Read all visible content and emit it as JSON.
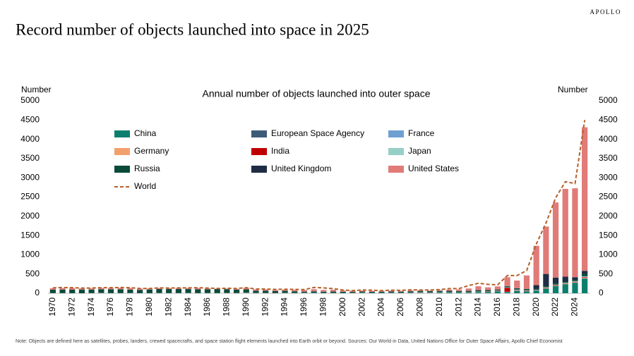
{
  "brand": "APOLLO",
  "title": "Record number of objects launched into space in 2025",
  "note": "Note: Objects are defined here as satellites, probes, landers, crewed spacecrafts, and space station flight elements launched into Earth orbit or beyond. Sources: Our World in Data, United Nations Office for Outer Space Affairs, Apollo Chief Economist",
  "chart_data": {
    "type": "bar",
    "stacked": true,
    "title": "Annual number of objects launched into outer space",
    "y_label": "Number",
    "y2_label": "Number",
    "legend": "upper left",
    "categories": [
      "1970",
      null,
      "1972",
      null,
      "1974",
      null,
      "1976",
      null,
      "1978",
      null,
      "1980",
      null,
      "1982",
      null,
      "1984",
      null,
      "1986",
      null,
      "1988",
      null,
      "1990",
      null,
      "1992",
      null,
      "1994",
      null,
      "1996",
      null,
      "1998",
      null,
      "2000",
      null,
      "2002",
      null,
      "2004",
      null,
      "2006",
      null,
      "2008",
      null,
      "2010",
      null,
      "2012",
      null,
      "2014",
      null,
      "2016",
      null,
      "2018",
      null,
      "2020",
      null,
      "2022",
      null,
      "2024",
      null
    ],
    "ylim": [
      0,
      5000
    ],
    "yticks": [
      0,
      500,
      1000,
      1500,
      2000,
      2500,
      3000,
      3500,
      4000,
      4500,
      5000
    ],
    "y2lim": [
      0,
      5000
    ],
    "y2ticks": [
      0,
      500,
      1000,
      1500,
      2000,
      2500,
      3000,
      3500,
      4000,
      4500,
      5000
    ],
    "series": [
      {
        "name": "China",
        "color": "#0b7f6e",
        "values": [
          1,
          1,
          0,
          0,
          1,
          3,
          2,
          0,
          1,
          0,
          0,
          3,
          1,
          2,
          3,
          1,
          2,
          2,
          4,
          1,
          4,
          3,
          5,
          2,
          5,
          2,
          4,
          8,
          6,
          4,
          5,
          3,
          5,
          7,
          10,
          5,
          6,
          10,
          11,
          7,
          16,
          19,
          20,
          18,
          26,
          30,
          50,
          30,
          60,
          50,
          70,
          120,
          190,
          230,
          270,
          380
        ]
      },
      {
        "name": "European Space Agency",
        "color": "#3d5a78",
        "values": [
          0,
          0,
          0,
          0,
          0,
          1,
          0,
          1,
          2,
          1,
          0,
          1,
          0,
          1,
          1,
          1,
          0,
          0,
          1,
          1,
          1,
          1,
          0,
          0,
          0,
          0,
          1,
          1,
          0,
          1,
          0,
          1,
          1,
          1,
          0,
          2,
          1,
          1,
          2,
          2,
          1,
          2,
          1,
          2,
          2,
          3,
          3,
          3,
          2,
          1,
          1,
          2,
          1,
          3,
          2,
          4
        ]
      },
      {
        "name": "France",
        "color": "#6ea0d2",
        "values": [
          2,
          1,
          0,
          0,
          1,
          3,
          0,
          1,
          0,
          0,
          0,
          1,
          0,
          0,
          2,
          1,
          1,
          0,
          1,
          1,
          2,
          1,
          1,
          1,
          1,
          1,
          1,
          1,
          1,
          2,
          1,
          1,
          2,
          1,
          2,
          2,
          1,
          2,
          1,
          2,
          1,
          3,
          2,
          1,
          2,
          1,
          2,
          2,
          3,
          2,
          3,
          2,
          3,
          4,
          3,
          5
        ]
      },
      {
        "name": "Germany",
        "color": "#f2a06b",
        "values": [
          1,
          0,
          1,
          0,
          1,
          0,
          1,
          0,
          0,
          0,
          0,
          0,
          0,
          0,
          0,
          0,
          0,
          0,
          1,
          1,
          3,
          1,
          0,
          0,
          1,
          0,
          1,
          1,
          0,
          1,
          1,
          3,
          1,
          0,
          0,
          1,
          1,
          2,
          3,
          1,
          2,
          1,
          1,
          2,
          3,
          1,
          2,
          4,
          5,
          3,
          4,
          8,
          10,
          8,
          12,
          14
        ]
      },
      {
        "name": "India",
        "color": "#c00000",
        "values": [
          0,
          0,
          0,
          0,
          0,
          1,
          0,
          0,
          0,
          1,
          1,
          1,
          1,
          1,
          0,
          0,
          0,
          1,
          1,
          0,
          0,
          1,
          1,
          1,
          1,
          1,
          1,
          0,
          1,
          1,
          0,
          2,
          1,
          1,
          1,
          2,
          0,
          2,
          6,
          3,
          3,
          5,
          2,
          4,
          2,
          8,
          9,
          104,
          10,
          11,
          6,
          11,
          14,
          10,
          12,
          15
        ]
      },
      {
        "name": "Japan",
        "color": "#96cfc6",
        "values": [
          1,
          2,
          1,
          0,
          1,
          3,
          2,
          3,
          4,
          2,
          2,
          3,
          3,
          3,
          3,
          2,
          3,
          3,
          2,
          2,
          5,
          2,
          2,
          1,
          3,
          3,
          5,
          2,
          2,
          1,
          1,
          2,
          6,
          2,
          1,
          3,
          4,
          3,
          6,
          6,
          5,
          2,
          3,
          5,
          8,
          7,
          8,
          12,
          16,
          14,
          8,
          14,
          10,
          20,
          18,
          24
        ]
      },
      {
        "name": "Russia",
        "color": "#0a4a3a",
        "values": [
          86,
          92,
          90,
          96,
          92,
          94,
          99,
          100,
          89,
          84,
          94,
          100,
          104,
          102,
          100,
          100,
          100,
          103,
          96,
          89,
          86,
          60,
          56,
          50,
          52,
          45,
          30,
          36,
          30,
          33,
          30,
          25,
          28,
          25,
          25,
          30,
          28,
          30,
          30,
          32,
          30,
          32,
          28,
          30,
          36,
          32,
          20,
          24,
          24,
          30,
          20,
          25,
          30,
          36,
          40,
          60
        ]
      },
      {
        "name": "United Kingdom",
        "color": "#1f2d44",
        "values": [
          0,
          1,
          0,
          1,
          1,
          0,
          0,
          0,
          0,
          0,
          0,
          1,
          0,
          0,
          0,
          0,
          0,
          0,
          0,
          0,
          1,
          0,
          0,
          0,
          0,
          0,
          0,
          1,
          1,
          3,
          2,
          1,
          1,
          1,
          1,
          2,
          1,
          2,
          2,
          2,
          3,
          1,
          2,
          2,
          3,
          2,
          4,
          7,
          10,
          2,
          100,
          320,
          150,
          120,
          60,
          80
        ]
      },
      {
        "name": "United States",
        "color": "#e07b78",
        "values": [
          40,
          36,
          40,
          30,
          30,
          30,
          30,
          35,
          40,
          30,
          25,
          25,
          20,
          25,
          25,
          30,
          20,
          10,
          15,
          20,
          35,
          30,
          35,
          30,
          30,
          35,
          40,
          55,
          45,
          45,
          30,
          25,
          25,
          25,
          20,
          20,
          20,
          20,
          20,
          15,
          20,
          30,
          40,
          60,
          100,
          70,
          80,
          230,
          200,
          350,
          1020,
          1230,
          1950,
          2280,
          2310,
          3730
        ]
      },
      {
        "name": "World",
        "type": "line",
        "dash": true,
        "color": "#b5602a",
        "values": [
          140,
          150,
          145,
          135,
          135,
          145,
          145,
          150,
          145,
          125,
          125,
          140,
          135,
          140,
          140,
          145,
          135,
          125,
          130,
          125,
          145,
          110,
          110,
          100,
          105,
          100,
          95,
          150,
          140,
          120,
          85,
          70,
          85,
          80,
          70,
          80,
          75,
          90,
          85,
          85,
          95,
          120,
          120,
          200,
          260,
          230,
          220,
          460,
          460,
          590,
          1280,
          1830,
          2480,
          2900,
          2850,
          4500
        ]
      }
    ]
  }
}
